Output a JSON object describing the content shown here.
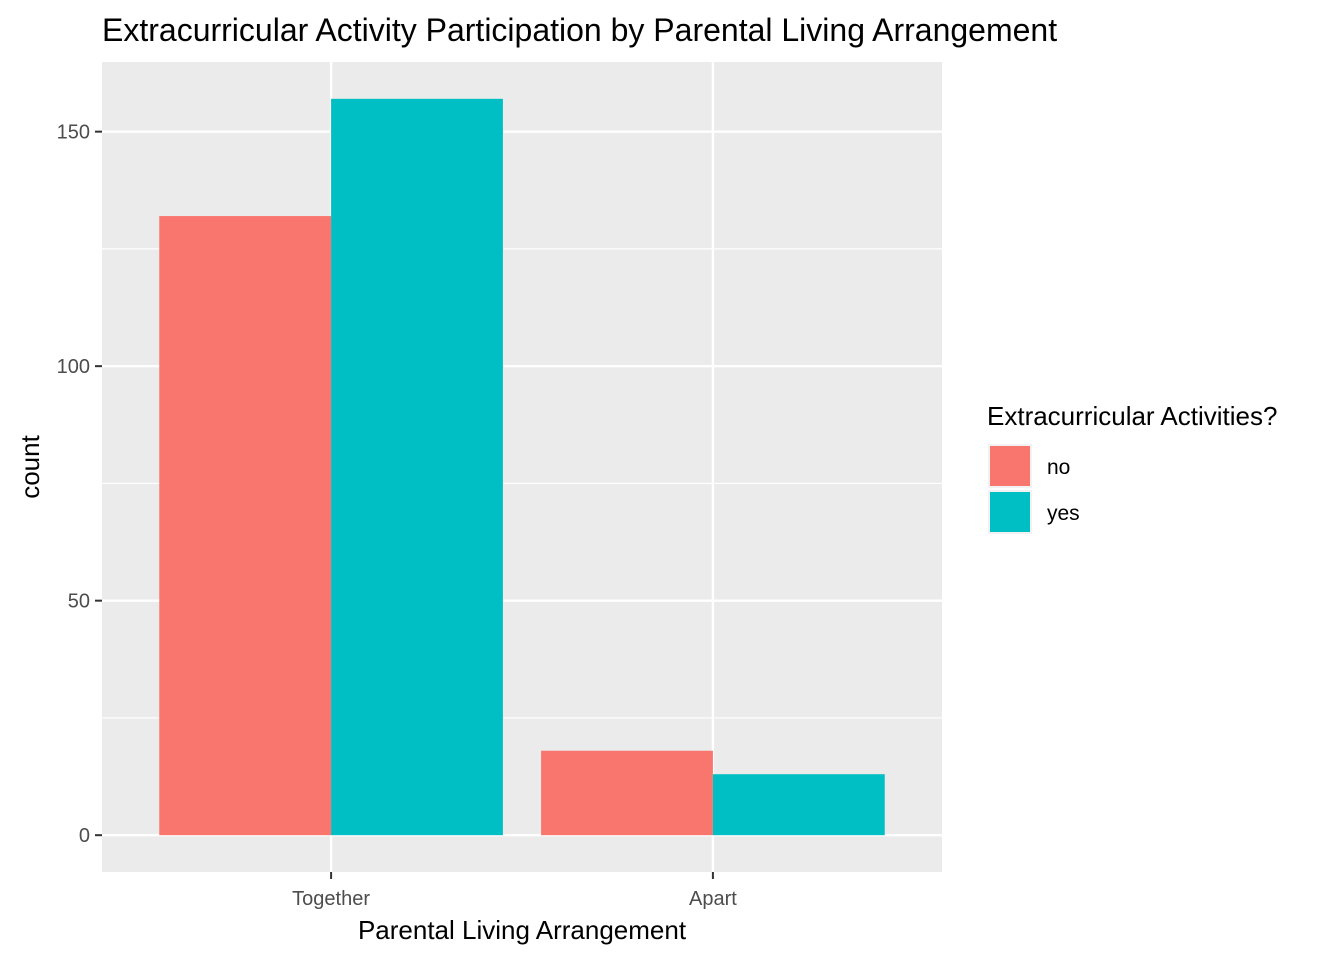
{
  "chart_data": {
    "type": "bar",
    "title": "Extracurricular Activity Participation by Parental Living Arrangement",
    "xlabel": "Parental Living Arrangement",
    "ylabel": "count",
    "categories": [
      "Together",
      "Apart"
    ],
    "series": [
      {
        "name": "no",
        "values": [
          132,
          18
        ],
        "color": "#F8766D"
      },
      {
        "name": "yes",
        "values": [
          157,
          13
        ],
        "color": "#00BFC4"
      }
    ],
    "ylim": [
      -7.85,
      164.85
    ],
    "yticks": [
      0,
      50,
      100,
      150
    ],
    "grid": true,
    "legend": {
      "title": "Extracurricular Activities?",
      "position": "right"
    }
  }
}
